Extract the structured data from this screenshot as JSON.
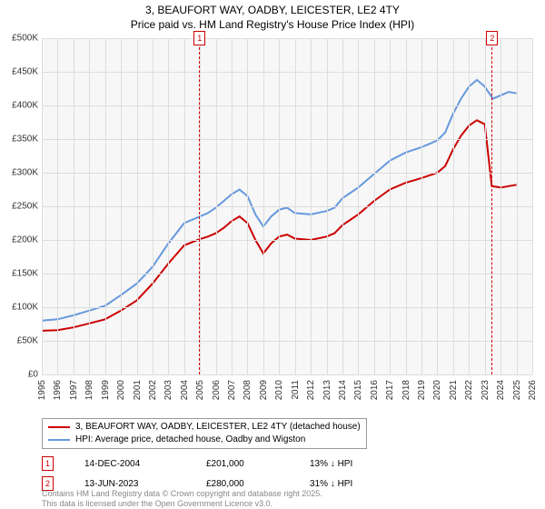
{
  "title": {
    "line1": "3, BEAUFORT WAY, OADBY, LEICESTER, LE2 4TY",
    "line2": "Price paid vs. HM Land Registry's House Price Index (HPI)"
  },
  "chart": {
    "type": "line",
    "background_color": "#f7f7f7",
    "grid_color": "#dddddd",
    "y": {
      "min": 0,
      "max": 500000,
      "step": 50000,
      "ticks": [
        "£0",
        "£50K",
        "£100K",
        "£150K",
        "£200K",
        "£250K",
        "£300K",
        "£350K",
        "£400K",
        "£450K",
        "£500K"
      ]
    },
    "x": {
      "min": 1995,
      "max": 2026,
      "ticks": [
        "1995",
        "1996",
        "1997",
        "1998",
        "1999",
        "2000",
        "2001",
        "2002",
        "2003",
        "2004",
        "2005",
        "2006",
        "2007",
        "2008",
        "2009",
        "2010",
        "2011",
        "2012",
        "2013",
        "2014",
        "2015",
        "2016",
        "2017",
        "2018",
        "2019",
        "2020",
        "2021",
        "2022",
        "2023",
        "2024",
        "2025",
        "2026"
      ]
    },
    "series": [
      {
        "label": "3, BEAUFORT WAY, OADBY, LEICESTER, LE2 4TY (detached house)",
        "color": "#cc0000",
        "width": 2,
        "data": [
          [
            1995,
            65000
          ],
          [
            1996,
            66000
          ],
          [
            1997,
            70000
          ],
          [
            1998,
            76000
          ],
          [
            1999,
            82000
          ],
          [
            2000,
            95000
          ],
          [
            2001,
            110000
          ],
          [
            2002,
            135000
          ],
          [
            2003,
            165000
          ],
          [
            2004,
            192000
          ],
          [
            2004.95,
            201000
          ],
          [
            2005.5,
            205000
          ],
          [
            2006,
            210000
          ],
          [
            2006.5,
            218000
          ],
          [
            2007,
            228000
          ],
          [
            2007.5,
            235000
          ],
          [
            2008,
            225000
          ],
          [
            2008.5,
            200000
          ],
          [
            2009,
            180000
          ],
          [
            2009.5,
            195000
          ],
          [
            2010,
            205000
          ],
          [
            2010.5,
            208000
          ],
          [
            2011,
            202000
          ],
          [
            2012,
            200000
          ],
          [
            2013,
            205000
          ],
          [
            2013.5,
            210000
          ],
          [
            2014,
            222000
          ],
          [
            2015,
            238000
          ],
          [
            2016,
            258000
          ],
          [
            2017,
            275000
          ],
          [
            2018,
            285000
          ],
          [
            2019,
            292000
          ],
          [
            2020,
            300000
          ],
          [
            2020.5,
            310000
          ],
          [
            2021,
            335000
          ],
          [
            2021.5,
            355000
          ],
          [
            2022,
            370000
          ],
          [
            2022.5,
            378000
          ],
          [
            2023,
            372000
          ],
          [
            2023.44,
            280000
          ],
          [
            2023.45,
            280000
          ],
          [
            2024,
            278000
          ],
          [
            2024.5,
            280000
          ],
          [
            2025,
            282000
          ]
        ]
      },
      {
        "label": "HPI: Average price, detached house, Oadby and Wigston",
        "color": "#6699dd",
        "width": 2,
        "data": [
          [
            1995,
            80000
          ],
          [
            1996,
            82000
          ],
          [
            1997,
            88000
          ],
          [
            1998,
            95000
          ],
          [
            1999,
            102000
          ],
          [
            2000,
            118000
          ],
          [
            2001,
            135000
          ],
          [
            2002,
            160000
          ],
          [
            2003,
            195000
          ],
          [
            2004,
            225000
          ],
          [
            2005,
            235000
          ],
          [
            2005.5,
            240000
          ],
          [
            2006,
            248000
          ],
          [
            2006.5,
            258000
          ],
          [
            2007,
            268000
          ],
          [
            2007.5,
            275000
          ],
          [
            2008,
            265000
          ],
          [
            2008.5,
            238000
          ],
          [
            2009,
            220000
          ],
          [
            2009.5,
            235000
          ],
          [
            2010,
            245000
          ],
          [
            2010.5,
            248000
          ],
          [
            2011,
            240000
          ],
          [
            2012,
            238000
          ],
          [
            2013,
            243000
          ],
          [
            2013.5,
            248000
          ],
          [
            2014,
            262000
          ],
          [
            2015,
            278000
          ],
          [
            2016,
            298000
          ],
          [
            2017,
            318000
          ],
          [
            2018,
            330000
          ],
          [
            2019,
            338000
          ],
          [
            2020,
            348000
          ],
          [
            2020.5,
            360000
          ],
          [
            2021,
            388000
          ],
          [
            2021.5,
            410000
          ],
          [
            2022,
            428000
          ],
          [
            2022.5,
            438000
          ],
          [
            2023,
            428000
          ],
          [
            2023.5,
            410000
          ],
          [
            2024,
            415000
          ],
          [
            2024.5,
            420000
          ],
          [
            2025,
            418000
          ]
        ]
      }
    ],
    "markers": [
      {
        "n": "1",
        "x": 2004.95,
        "color": "#cc0000"
      },
      {
        "n": "2",
        "x": 2023.44,
        "color": "#cc0000"
      }
    ]
  },
  "sales": [
    {
      "n": "1",
      "color": "#cc0000",
      "date": "14-DEC-2004",
      "price": "£201,000",
      "diff": "13% ↓ HPI"
    },
    {
      "n": "2",
      "color": "#cc0000",
      "date": "13-JUN-2023",
      "price": "£280,000",
      "diff": "31% ↓ HPI"
    }
  ],
  "footer": {
    "line1": "Contains HM Land Registry data © Crown copyright and database right 2025.",
    "line2": "This data is licensed under the Open Government Licence v3.0."
  }
}
